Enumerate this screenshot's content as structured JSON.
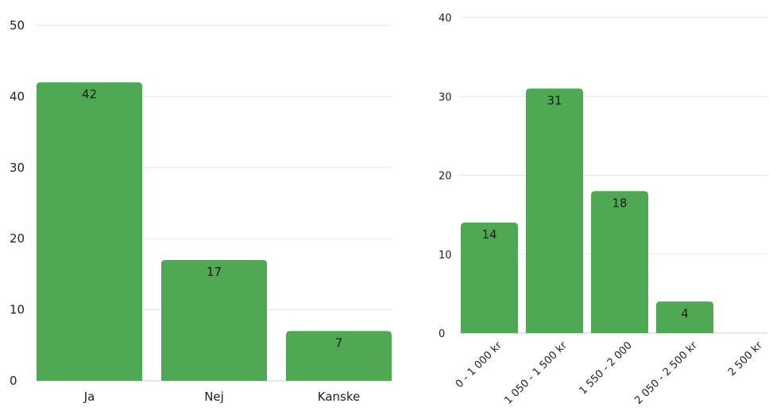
{
  "chart_data": [
    {
      "type": "bar",
      "categories": [
        "Ja",
        "Nej",
        "Kanske"
      ],
      "values": [
        42,
        17,
        7
      ],
      "title": "",
      "xlabel": "",
      "ylabel": "",
      "ylim": [
        0,
        50
      ],
      "yticks": [
        "0",
        "10",
        "20",
        "30",
        "40",
        "50"
      ],
      "data_labels": [
        "42",
        "17",
        "7"
      ],
      "grid": true,
      "color": "#4fa852"
    },
    {
      "type": "bar",
      "categories": [
        "0 - 1 000 kr",
        "1 050 - 1 500 kr",
        "1 550 - 2 000",
        "2 050 - 2 500 kr",
        "2 500 kr"
      ],
      "values": [
        14,
        31,
        18,
        4,
        0
      ],
      "title": "",
      "xlabel": "",
      "ylabel": "",
      "ylim": [
        0,
        40
      ],
      "yticks": [
        "0",
        "10",
        "20",
        "30",
        "40"
      ],
      "data_labels": [
        "14",
        "31",
        "18",
        "4",
        ""
      ],
      "grid": true,
      "color": "#4fa852"
    }
  ]
}
